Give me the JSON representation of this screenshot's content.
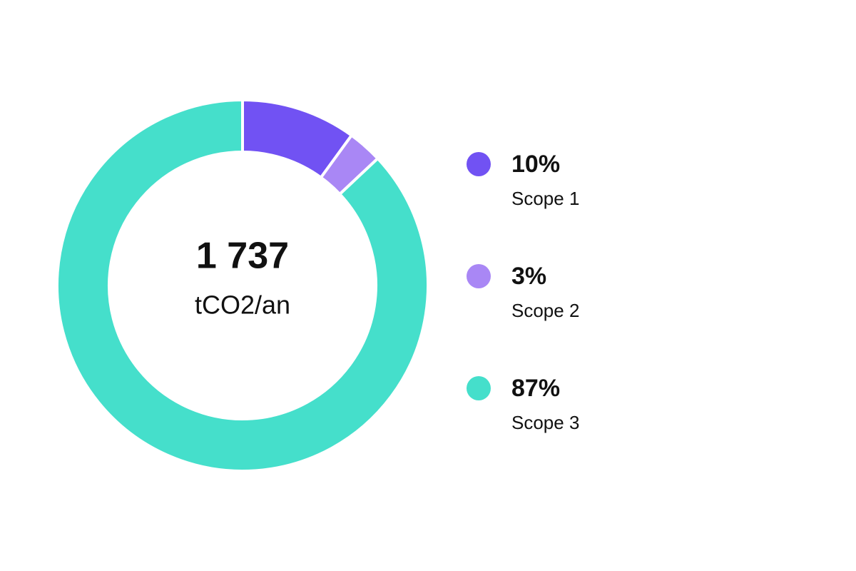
{
  "chart_data": {
    "type": "pie",
    "categories": [
      "Scope 1",
      "Scope 2",
      "Scope 3"
    ],
    "values": [
      10,
      3,
      87
    ],
    "value_labels": [
      "10%",
      "3%",
      "87%"
    ],
    "colors": [
      "#7152f3",
      "#a987f5",
      "#45dfcb"
    ],
    "center_label": "1 737",
    "center_sublabel": "tCO2/an"
  }
}
